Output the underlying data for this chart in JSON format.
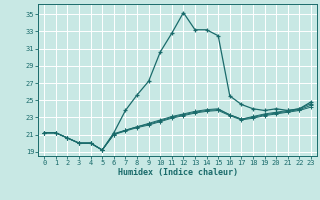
{
  "xlabel": "Humidex (Indice chaleur)",
  "bg_color": "#c8e8e4",
  "grid_color": "#ffffff",
  "line_color": "#1a6b6b",
  "xlim": [
    -0.5,
    23.5
  ],
  "ylim": [
    18.5,
    36.2
  ],
  "xticks": [
    0,
    1,
    2,
    3,
    4,
    5,
    6,
    7,
    8,
    9,
    10,
    11,
    12,
    13,
    14,
    15,
    16,
    17,
    18,
    19,
    20,
    21,
    22,
    23
  ],
  "yticks": [
    19,
    21,
    23,
    25,
    27,
    29,
    31,
    33,
    35
  ],
  "series": [
    [
      21.2,
      21.2,
      20.6,
      20.0,
      20.0,
      19.2,
      21.2,
      23.8,
      25.6,
      27.2,
      30.6,
      32.8,
      35.2,
      33.2,
      33.2,
      32.5,
      25.5,
      24.5,
      24.0,
      23.8,
      24.0,
      23.8,
      24.0,
      24.8
    ],
    [
      21.2,
      21.2,
      20.6,
      20.0,
      20.0,
      19.2,
      21.0,
      21.5,
      21.9,
      22.3,
      22.7,
      23.1,
      23.4,
      23.7,
      23.9,
      24.0,
      23.3,
      22.8,
      23.1,
      23.4,
      23.6,
      23.8,
      24.0,
      24.6
    ],
    [
      21.2,
      21.2,
      20.6,
      20.0,
      20.0,
      19.2,
      21.1,
      21.5,
      21.9,
      22.2,
      22.6,
      23.0,
      23.3,
      23.6,
      23.8,
      23.9,
      23.3,
      22.8,
      23.0,
      23.3,
      23.5,
      23.7,
      23.9,
      24.4
    ],
    [
      21.2,
      21.2,
      20.6,
      20.0,
      20.0,
      19.2,
      21.0,
      21.4,
      21.8,
      22.1,
      22.5,
      22.9,
      23.2,
      23.5,
      23.7,
      23.8,
      23.2,
      22.7,
      22.9,
      23.2,
      23.4,
      23.6,
      23.8,
      24.2
    ]
  ]
}
